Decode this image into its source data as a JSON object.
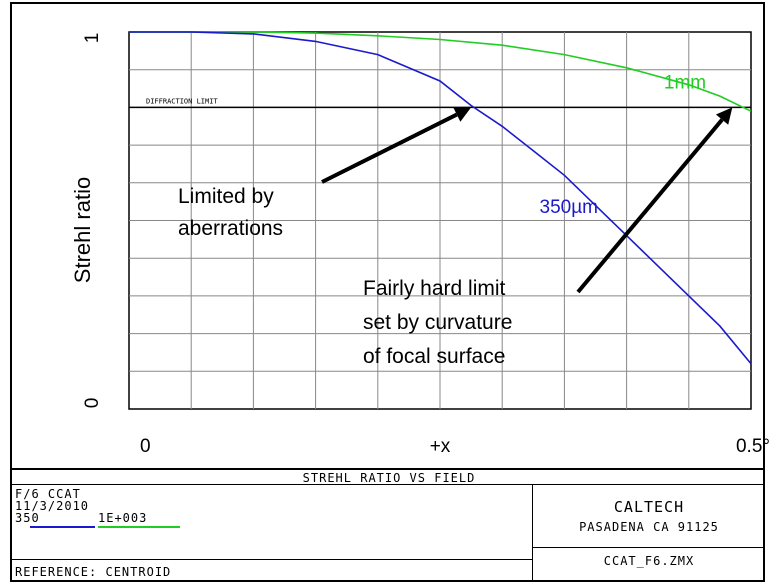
{
  "chart_data": {
    "type": "line",
    "title": "STREHL RATIO VS FIELD",
    "ylabel": "Strehl ratio",
    "xlabel": "",
    "x_ticks": [
      "0",
      "+x",
      "0.5°"
    ],
    "y_ticks": [
      "0",
      "1"
    ],
    "xlim": [
      0,
      0.5
    ],
    "ylim": [
      0,
      1
    ],
    "grid": true,
    "diffraction_limit": {
      "value": 0.8,
      "label": "DIFFRACTION LIMIT"
    },
    "series": [
      {
        "name": "1mm",
        "color": "#22cc22",
        "x": [
          0,
          0.05,
          0.1,
          0.15,
          0.2,
          0.25,
          0.3,
          0.35,
          0.4,
          0.45,
          0.475,
          0.5
        ],
        "y": [
          1.0,
          1.0,
          1.0,
          0.997,
          0.99,
          0.98,
          0.965,
          0.94,
          0.905,
          0.86,
          0.83,
          0.79
        ]
      },
      {
        "name": "350µm",
        "color": "#1a1acc",
        "x": [
          0,
          0.05,
          0.1,
          0.15,
          0.2,
          0.25,
          0.275,
          0.3,
          0.325,
          0.35,
          0.4,
          0.45,
          0.475,
          0.5
        ],
        "y": [
          1.0,
          1.0,
          0.995,
          0.975,
          0.94,
          0.87,
          0.805,
          0.75,
          0.685,
          0.62,
          0.46,
          0.3,
          0.22,
          0.12
        ]
      }
    ],
    "annotations": [
      {
        "text_lines": [
          "Limited by",
          "aberrations"
        ],
        "target": [
          0.275,
          0.8
        ]
      },
      {
        "text_lines": [
          "Fairly hard limit",
          "set by curvature",
          "of focal surface"
        ],
        "target": [
          0.485,
          0.8
        ]
      }
    ]
  },
  "footer": {
    "title": "STREHL RATIO VS FIELD",
    "left_lines": [
      "F/6 CCAT",
      "11/3/2010"
    ],
    "legend": {
      "a_label": "350",
      "b_label": "1E+003",
      "a_color": "#1a1acc",
      "b_color": "#22cc22"
    },
    "reference": "REFERENCE: CENTROID",
    "org": "CALTECH",
    "address": "PASADENA CA 91125",
    "file": "CCAT_F6.ZMX"
  }
}
